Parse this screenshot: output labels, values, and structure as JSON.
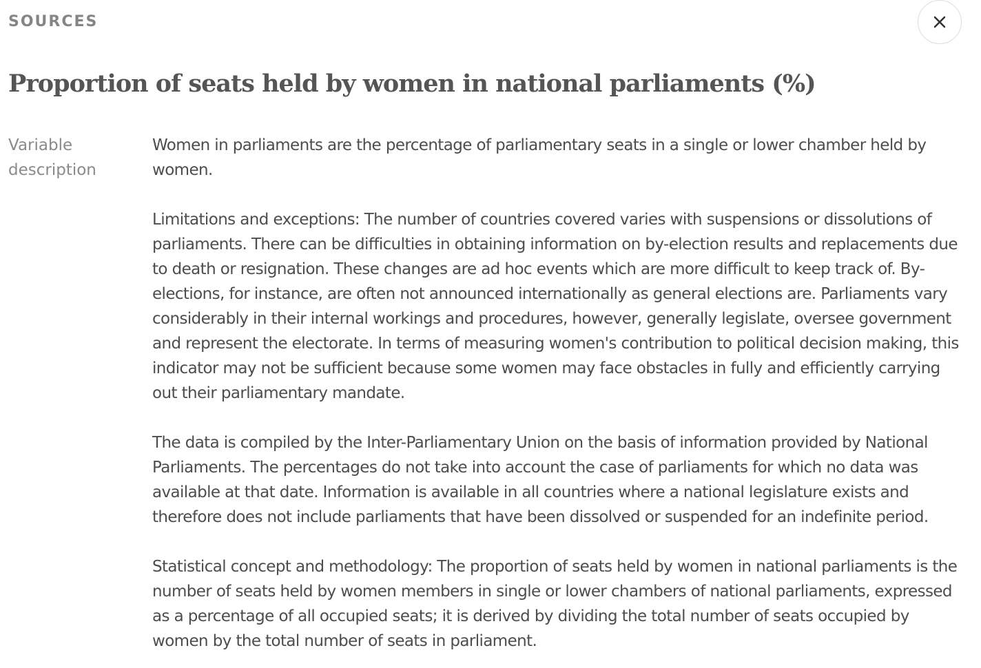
{
  "header": {
    "sources_label": "SOURCES",
    "close_icon": "close-icon"
  },
  "title": "Proportion of seats held by women in national parliaments (%)",
  "variable_description": {
    "label": "Variable description",
    "paragraphs": [
      "Women in parliaments are the percentage of parliamentary seats in a single or lower chamber held by women.",
      "Limitations and exceptions: The number of countries covered varies with suspensions or dissolutions of parliaments. There can be difficulties in obtaining information on by-election results and replacements due to death or resignation. These changes are ad hoc events which are more difficult to keep track of. By-elections, for instance, are often not announced internationally as general elections are. Parliaments vary considerably in their internal workings and procedures, however, generally legislate, oversee government and represent the electorate. In terms of measuring women's contribution to political decision making, this indicator may not be sufficient because some women may face obstacles in fully and efficiently carrying out their parliamentary mandate.",
      "The data is compiled by the Inter-Parliamentary Union on the basis of information provided by National Parliaments. The percentages do not take into account the case of parliaments for which no data was available at that date. Information is available in all countries where a national legislature exists and therefore does not include parliaments that have been dissolved or suspended for an indefinite period.",
      "Statistical concept and methodology: The proportion of seats held by women in national parliaments is the number of seats held by women members in single or lower chambers of national parliaments, expressed as a percentage of all occupied seats; it is derived by dividing the total number of seats occupied by women by the total number of seats in parliament."
    ]
  },
  "colors": {
    "label_gray": "#858585",
    "title_gray": "#555555",
    "body_text": "#4d4d4d",
    "border": "#dcdcdc"
  }
}
